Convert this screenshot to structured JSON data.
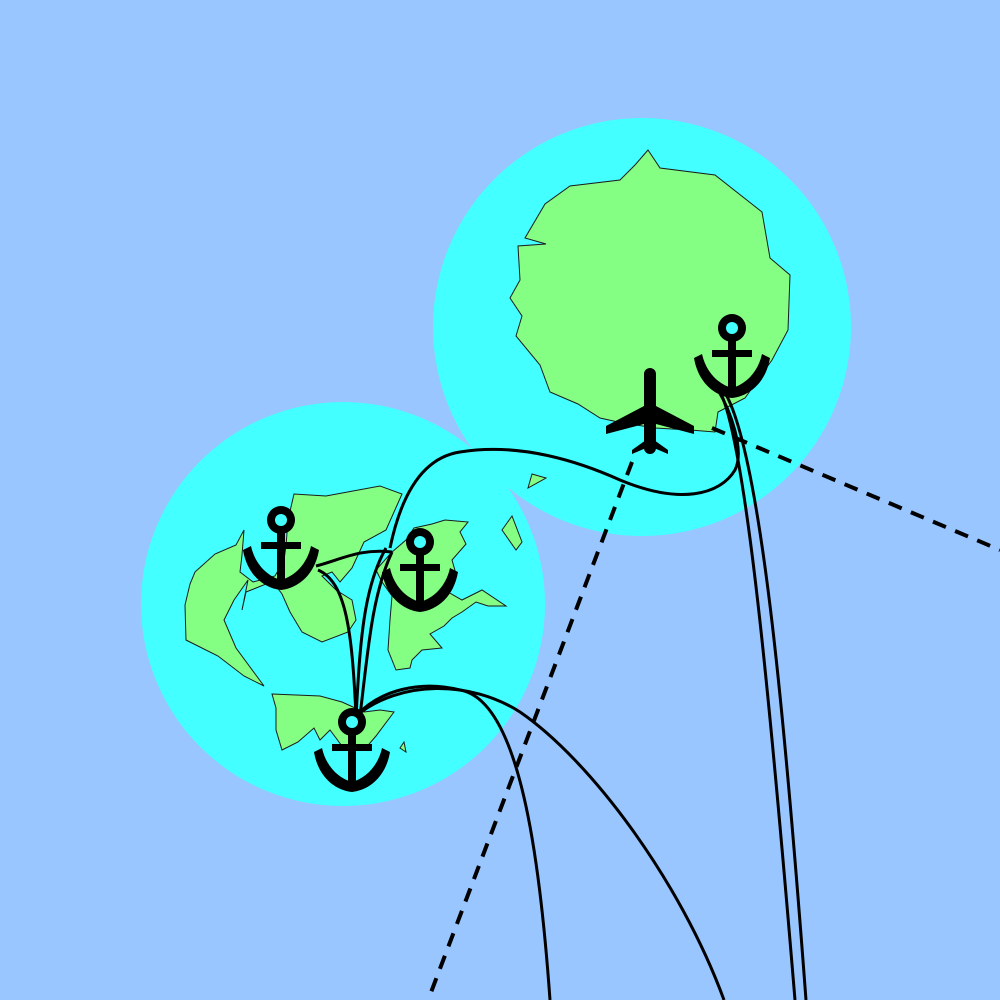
{
  "map": {
    "type": "island-transport-map",
    "colors": {
      "ocean": "#99c6ff",
      "shallows": "#43ffff",
      "land": "#84ff84",
      "outline": "#1a1a1a",
      "routes": "#000000"
    },
    "islands": [
      {
        "name": "northeast-island",
        "ports": 1,
        "airports": 1
      },
      {
        "name": "southwest-archipelago",
        "ports": 3,
        "airports": 0
      }
    ],
    "legend_icons": [
      "anchor-icon",
      "airplane-icon"
    ]
  }
}
